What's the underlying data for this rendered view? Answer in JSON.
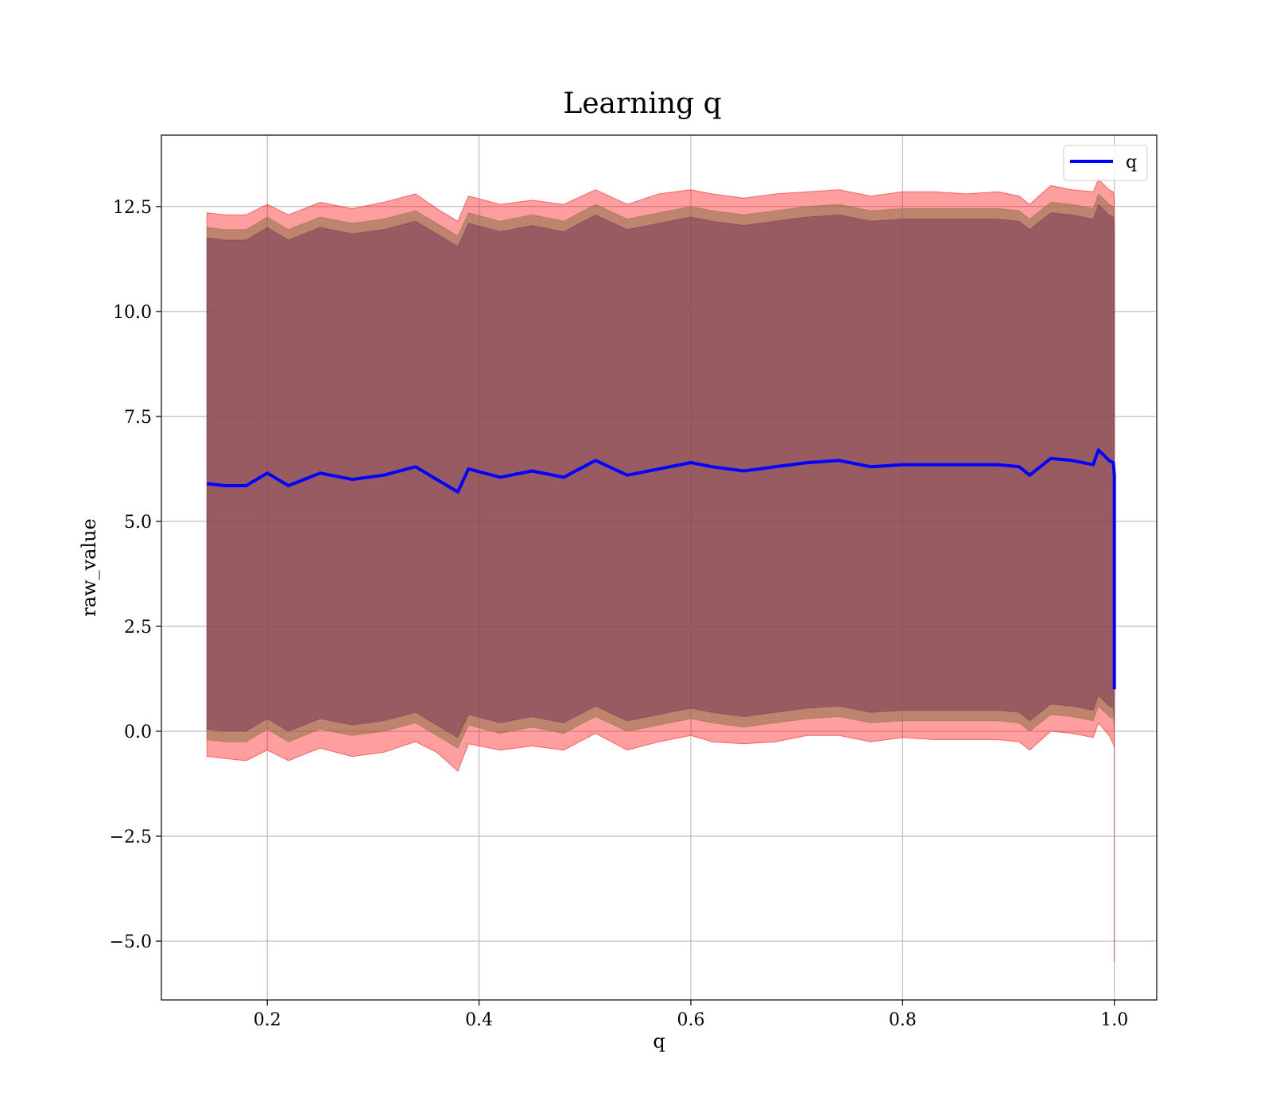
{
  "chart_data": {
    "type": "area",
    "title": "Learning q",
    "xlabel": "q",
    "ylabel": "raw_value",
    "xlim": [
      0.1,
      1.04
    ],
    "ylim": [
      -6.4,
      14.2
    ],
    "xticks": [
      0.2,
      0.4,
      0.6,
      0.8,
      1.0
    ],
    "xtick_labels": [
      "0.2",
      "0.4",
      "0.6",
      "0.8",
      "1.0"
    ],
    "yticks": [
      -5.0,
      -2.5,
      0.0,
      2.5,
      5.0,
      7.5,
      10.0,
      12.5
    ],
    "ytick_labels": [
      "−5.0",
      "−2.5",
      "0.0",
      "2.5",
      "5.0",
      "7.5",
      "10.0",
      "12.5"
    ],
    "grid": true,
    "legend_position": "top-right",
    "series": [
      {
        "name": "q",
        "color": "#0000ff",
        "x": [
          0.143,
          0.16,
          0.18,
          0.2,
          0.22,
          0.25,
          0.28,
          0.31,
          0.34,
          0.36,
          0.38,
          0.39,
          0.42,
          0.45,
          0.48,
          0.51,
          0.54,
          0.57,
          0.6,
          0.62,
          0.65,
          0.68,
          0.71,
          0.74,
          0.77,
          0.8,
          0.83,
          0.86,
          0.89,
          0.91,
          0.92,
          0.94,
          0.96,
          0.98,
          0.985,
          0.995,
          0.999,
          1.0,
          1.0
        ],
        "y": [
          5.9,
          5.85,
          5.85,
          6.15,
          5.85,
          6.15,
          6.0,
          6.1,
          6.3,
          6.0,
          5.7,
          6.25,
          6.05,
          6.2,
          6.05,
          6.45,
          6.1,
          6.25,
          6.4,
          6.3,
          6.2,
          6.3,
          6.4,
          6.45,
          6.3,
          6.35,
          6.35,
          6.35,
          6.35,
          6.3,
          6.1,
          6.5,
          6.45,
          6.35,
          6.7,
          6.45,
          6.4,
          6.1,
          1.0
        ]
      }
    ],
    "bands": [
      {
        "color": "#ff0000",
        "x": [
          0.143,
          0.16,
          0.18,
          0.2,
          0.22,
          0.25,
          0.28,
          0.31,
          0.34,
          0.36,
          0.38,
          0.39,
          0.42,
          0.45,
          0.48,
          0.51,
          0.54,
          0.57,
          0.6,
          0.62,
          0.65,
          0.68,
          0.71,
          0.74,
          0.77,
          0.8,
          0.83,
          0.86,
          0.89,
          0.91,
          0.92,
          0.94,
          0.96,
          0.98,
          0.985,
          0.995,
          0.999,
          1.0,
          1.0
        ],
        "upper": [
          12.35,
          12.3,
          12.3,
          12.55,
          12.3,
          12.6,
          12.45,
          12.6,
          12.8,
          12.45,
          12.15,
          12.75,
          12.55,
          12.65,
          12.55,
          12.9,
          12.55,
          12.8,
          12.9,
          12.8,
          12.7,
          12.8,
          12.85,
          12.9,
          12.75,
          12.85,
          12.85,
          12.8,
          12.85,
          12.75,
          12.55,
          13.0,
          12.9,
          12.85,
          13.15,
          12.9,
          12.85,
          12.6,
          12.6
        ],
        "lower": [
          -0.6,
          -0.65,
          -0.7,
          -0.45,
          -0.7,
          -0.4,
          -0.6,
          -0.5,
          -0.25,
          -0.5,
          -0.95,
          -0.3,
          -0.45,
          -0.35,
          -0.45,
          -0.05,
          -0.45,
          -0.25,
          -0.1,
          -0.25,
          -0.3,
          -0.25,
          -0.1,
          -0.1,
          -0.25,
          -0.15,
          -0.2,
          -0.2,
          -0.2,
          -0.25,
          -0.45,
          0.0,
          -0.05,
          -0.15,
          0.2,
          -0.1,
          -0.3,
          -0.4,
          -5.5
        ]
      },
      {
        "color": "#8b6f47",
        "x": [
          0.143,
          0.16,
          0.18,
          0.2,
          0.22,
          0.25,
          0.28,
          0.31,
          0.34,
          0.36,
          0.38,
          0.39,
          0.42,
          0.45,
          0.48,
          0.51,
          0.54,
          0.57,
          0.6,
          0.62,
          0.65,
          0.68,
          0.71,
          0.74,
          0.77,
          0.8,
          0.83,
          0.86,
          0.89,
          0.91,
          0.92,
          0.94,
          0.96,
          0.98,
          0.985,
          0.995,
          0.999,
          1.0,
          1.0
        ],
        "upper": [
          12.0,
          11.95,
          11.95,
          12.25,
          11.95,
          12.25,
          12.1,
          12.2,
          12.4,
          12.1,
          11.8,
          12.35,
          12.15,
          12.3,
          12.15,
          12.55,
          12.2,
          12.35,
          12.5,
          12.4,
          12.3,
          12.4,
          12.5,
          12.55,
          12.4,
          12.45,
          12.45,
          12.45,
          12.45,
          12.4,
          12.2,
          12.6,
          12.55,
          12.45,
          12.8,
          12.55,
          12.5,
          12.2,
          12.2
        ],
        "lower": [
          -0.2,
          -0.25,
          -0.25,
          0.05,
          -0.25,
          0.05,
          -0.1,
          0.0,
          0.2,
          -0.1,
          -0.4,
          0.15,
          -0.05,
          0.1,
          -0.05,
          0.35,
          0.0,
          0.15,
          0.3,
          0.2,
          0.1,
          0.2,
          0.3,
          0.35,
          0.2,
          0.25,
          0.25,
          0.25,
          0.25,
          0.2,
          0.0,
          0.4,
          0.35,
          0.25,
          0.6,
          0.35,
          0.3,
          0.0,
          0.0
        ]
      },
      {
        "color": "#7a3a5a",
        "x": [
          0.143,
          0.16,
          0.18,
          0.2,
          0.22,
          0.25,
          0.28,
          0.31,
          0.34,
          0.36,
          0.38,
          0.39,
          0.42,
          0.45,
          0.48,
          0.51,
          0.54,
          0.57,
          0.6,
          0.62,
          0.65,
          0.68,
          0.71,
          0.74,
          0.77,
          0.8,
          0.83,
          0.86,
          0.89,
          0.91,
          0.92,
          0.94,
          0.96,
          0.98,
          0.985,
          0.995,
          0.999,
          1.0,
          1.0
        ],
        "upper": [
          11.75,
          11.7,
          11.7,
          12.0,
          11.7,
          12.0,
          11.85,
          11.95,
          12.15,
          11.85,
          11.55,
          12.1,
          11.9,
          12.05,
          11.9,
          12.3,
          11.95,
          12.1,
          12.25,
          12.15,
          12.05,
          12.15,
          12.25,
          12.3,
          12.15,
          12.2,
          12.2,
          12.2,
          12.2,
          12.15,
          11.95,
          12.35,
          12.3,
          12.2,
          12.55,
          12.3,
          12.25,
          11.95,
          11.95
        ],
        "lower": [
          0.05,
          0.0,
          0.0,
          0.3,
          0.0,
          0.3,
          0.15,
          0.25,
          0.45,
          0.15,
          -0.15,
          0.4,
          0.2,
          0.35,
          0.2,
          0.6,
          0.25,
          0.4,
          0.55,
          0.45,
          0.35,
          0.45,
          0.55,
          0.6,
          0.45,
          0.5,
          0.5,
          0.5,
          0.5,
          0.45,
          0.25,
          0.65,
          0.6,
          0.5,
          0.85,
          0.6,
          0.55,
          0.25,
          0.25
        ]
      }
    ]
  }
}
